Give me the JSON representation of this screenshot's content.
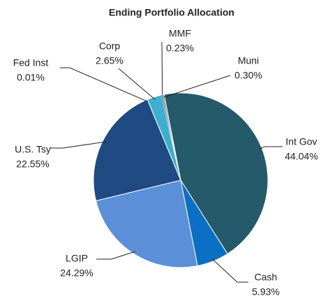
{
  "chart_data": {
    "type": "pie",
    "title": "Ending Portfolio Allocation",
    "categories": [
      "Int Gov",
      "Cash",
      "LGIP",
      "U.S. Tsy",
      "Fed Inst",
      "Corp",
      "MMF",
      "Muni"
    ],
    "values": [
      44.04,
      5.93,
      24.29,
      22.55,
      0.01,
      2.65,
      0.23,
      0.3
    ],
    "value_labels": [
      "44.04%",
      "5.93%",
      "24.29%",
      "22.55%",
      "0.01%",
      "2.65%",
      "0.23%",
      "0.30%"
    ],
    "colors": [
      "#245a6a",
      "#0b6fc3",
      "#5b8fd8",
      "#1f4a82",
      "#2f6f9a",
      "#3eaed0",
      "#1b3e5e",
      "#4d7e90"
    ]
  }
}
